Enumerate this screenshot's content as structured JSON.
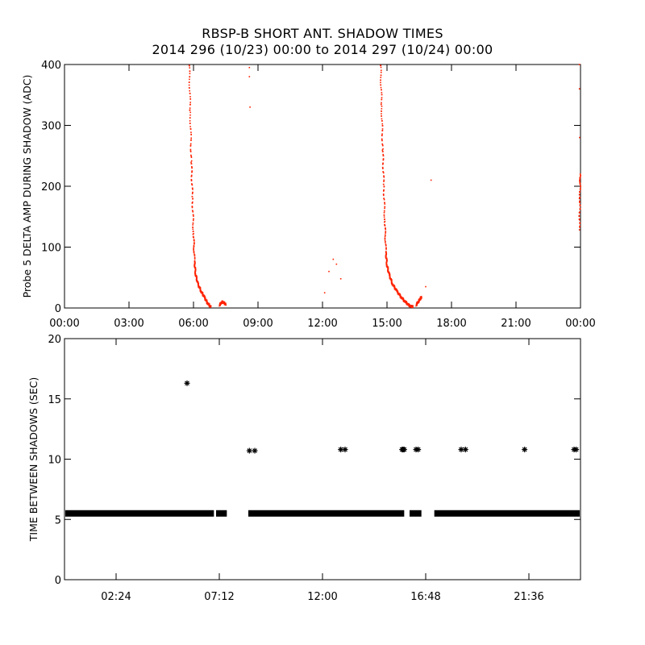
{
  "titles": {
    "line1": "RBSP-B SHORT ANT. SHADOW TIMES",
    "line2": "2014 296 (10/23) 00:00 to 2014 297 (10/24) 00:00"
  },
  "chart_data": [
    {
      "type": "scatter",
      "name": "top-panel",
      "ylabel": "Probe 5 DELTA AMP DURING SHADOW (ADC)",
      "xlabel": "",
      "xlim": [
        0,
        24
      ],
      "ylim": [
        0,
        400
      ],
      "x_unit": "hours",
      "x_ticks": [
        0,
        3,
        6,
        9,
        12,
        15,
        18,
        21,
        24
      ],
      "x_tick_labels": [
        "00:00",
        "03:00",
        "06:00",
        "09:00",
        "12:00",
        "15:00",
        "18:00",
        "21:00",
        "00:00"
      ],
      "y_ticks": [
        0,
        100,
        200,
        300,
        400
      ],
      "y_tick_labels": [
        "0",
        "100",
        "200",
        "300",
        "400"
      ],
      "point_color": "#ff2200",
      "segments": [
        [
          [
            5.8,
            400
          ],
          [
            5.85,
            320
          ],
          [
            5.9,
            240
          ],
          [
            5.95,
            180
          ],
          [
            6.0,
            120
          ],
          [
            6.05,
            75
          ],
          [
            6.1,
            55
          ],
          [
            6.2,
            40
          ],
          [
            6.35,
            28
          ],
          [
            6.5,
            18
          ],
          [
            6.65,
            8
          ],
          [
            6.8,
            2
          ]
        ],
        [
          [
            7.2,
            5
          ],
          [
            7.35,
            10
          ],
          [
            7.5,
            6
          ]
        ],
        [
          [
            14.7,
            400
          ],
          [
            14.75,
            330
          ],
          [
            14.8,
            260
          ],
          [
            14.85,
            200
          ],
          [
            14.9,
            140
          ],
          [
            14.95,
            90
          ],
          [
            15.0,
            70
          ],
          [
            15.1,
            55
          ],
          [
            15.25,
            40
          ],
          [
            15.45,
            28
          ],
          [
            15.65,
            18
          ],
          [
            15.85,
            10
          ],
          [
            16.05,
            4
          ],
          [
            16.2,
            2
          ]
        ],
        [
          [
            16.35,
            5
          ],
          [
            16.5,
            12
          ],
          [
            16.6,
            18
          ]
        ],
        [
          [
            23.95,
            130
          ],
          [
            23.97,
            180
          ],
          [
            23.99,
            220
          ]
        ]
      ],
      "isolated_points": [
        [
          8.6,
          395
        ],
        [
          8.6,
          380
        ],
        [
          8.63,
          330
        ],
        [
          12.1,
          25
        ],
        [
          12.3,
          60
        ],
        [
          12.5,
          80
        ],
        [
          12.65,
          72
        ],
        [
          12.85,
          48
        ],
        [
          16.8,
          35
        ],
        [
          17.05,
          210
        ],
        [
          23.95,
          400
        ],
        [
          23.95,
          360
        ],
        [
          23.96,
          280
        ]
      ]
    },
    {
      "type": "scatter",
      "name": "bottom-panel",
      "ylabel": "TIME BETWEEN SHADOWS (SEC)",
      "xlabel": "",
      "xlim": [
        0,
        24
      ],
      "ylim": [
        0,
        20
      ],
      "x_unit": "hours",
      "x_ticks": [
        2.4,
        7.2,
        12.0,
        16.8,
        21.6
      ],
      "x_tick_labels": [
        "02:24",
        "07:12",
        "12:00",
        "16:48",
        "21:36"
      ],
      "y_ticks": [
        0,
        5,
        10,
        15,
        20
      ],
      "y_tick_labels": [
        "0",
        "5",
        "10",
        "15",
        "20"
      ],
      "point_color": "#000000",
      "marker": "asterisk",
      "band_value": 5.5,
      "band_ranges": [
        [
          0,
          6.95
        ],
        [
          7.05,
          7.55
        ],
        [
          8.55,
          15.8
        ],
        [
          16.05,
          16.6
        ],
        [
          17.2,
          24
        ]
      ],
      "points": [
        [
          5.7,
          16.3
        ],
        [
          8.6,
          10.7
        ],
        [
          8.85,
          10.7
        ],
        [
          12.85,
          10.8
        ],
        [
          13.05,
          10.8
        ],
        [
          15.7,
          10.8
        ],
        [
          15.75,
          10.8
        ],
        [
          15.8,
          10.8
        ],
        [
          16.35,
          10.8
        ],
        [
          16.45,
          10.8
        ],
        [
          18.45,
          10.8
        ],
        [
          18.65,
          10.8
        ],
        [
          21.4,
          10.8
        ],
        [
          23.7,
          10.8
        ],
        [
          23.8,
          10.8
        ]
      ]
    }
  ]
}
